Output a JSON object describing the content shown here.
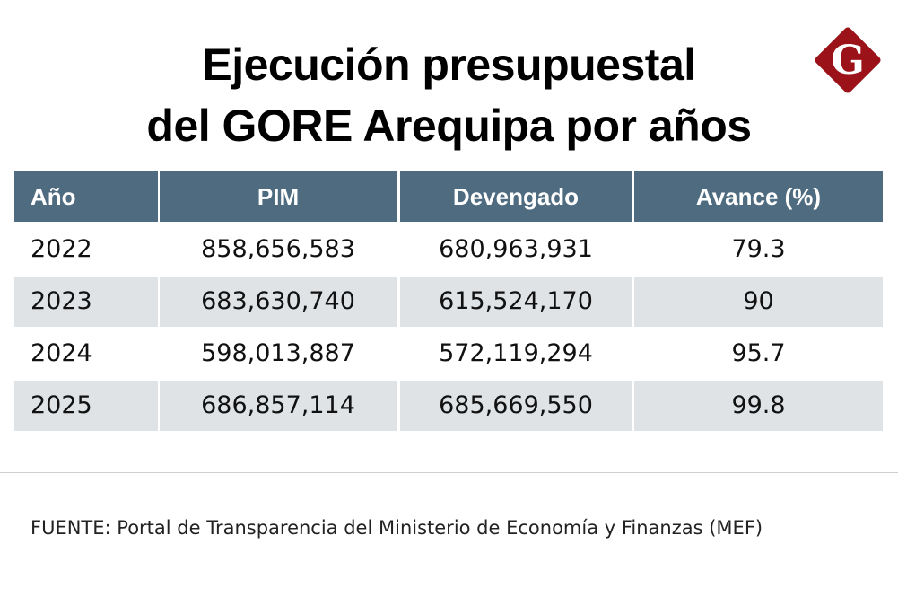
{
  "title_lines": [
    "Ejecución presupuestal",
    "del GORE Arequipa por años"
  ],
  "logo": {
    "letter": "G",
    "color": "#9b1318"
  },
  "colors": {
    "header_bg": "#4f6b80",
    "stripe_bg": "#dfe3e6"
  },
  "chart_data": {
    "type": "table",
    "title": "Ejecución presupuestal del GORE Arequipa por años",
    "columns": [
      "Año",
      "PIM",
      "Devengado",
      "Avance (%)"
    ],
    "rows": [
      [
        "2022",
        "858,656,583",
        "680,963,931",
        "79.3"
      ],
      [
        "2023",
        "683,630,740",
        "615,524,170",
        "90"
      ],
      [
        "2024",
        "598,013,887",
        "572,119,294",
        "95.7"
      ],
      [
        "2025",
        "686,857,114",
        "685,669,550",
        "99.8"
      ]
    ]
  },
  "source": "FUENTE: Portal de Transparencia del Ministerio de Economía y Finanzas (MEF)"
}
